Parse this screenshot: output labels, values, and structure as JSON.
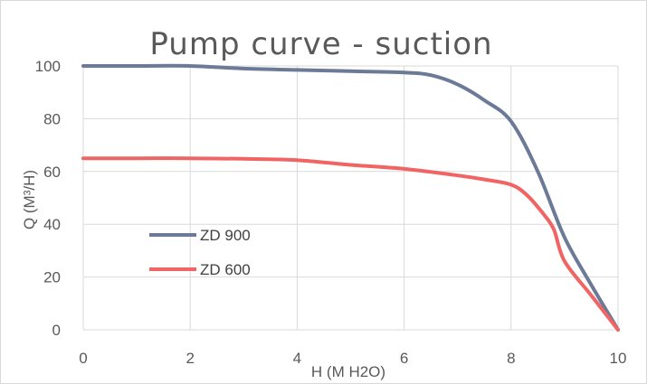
{
  "chart_data": {
    "type": "line",
    "title": "Pump curve - suction",
    "xlabel": "H (M H2O)",
    "ylabel": "Q (M³/H)",
    "xlim": [
      0,
      10
    ],
    "ylim": [
      0,
      100
    ],
    "xticks": [
      0,
      2,
      4,
      6,
      8,
      10
    ],
    "yticks": [
      0,
      20,
      40,
      60,
      80,
      100
    ],
    "grid": true,
    "legend_position": "left",
    "series": [
      {
        "name": "ZD 900",
        "color": "#6b7a96",
        "x": [
          0,
          1,
          2,
          3,
          4,
          5,
          6,
          6.5,
          7,
          7.5,
          8,
          8.5,
          9,
          9.5,
          10
        ],
        "y": [
          100,
          100,
          100,
          99,
          98.5,
          98,
          97.5,
          96.5,
          93,
          87,
          79,
          60,
          35,
          17,
          0
        ]
      },
      {
        "name": "ZD 600",
        "color": "#f06464",
        "x": [
          0,
          1,
          2,
          3,
          4,
          5,
          6,
          7,
          7.5,
          8,
          8.3,
          8.6,
          8.8,
          9,
          9.5,
          10
        ],
        "y": [
          65,
          65,
          65,
          64.8,
          64.3,
          62.5,
          61,
          58.5,
          57,
          55,
          51,
          44,
          38,
          26,
          13,
          0
        ]
      }
    ]
  }
}
